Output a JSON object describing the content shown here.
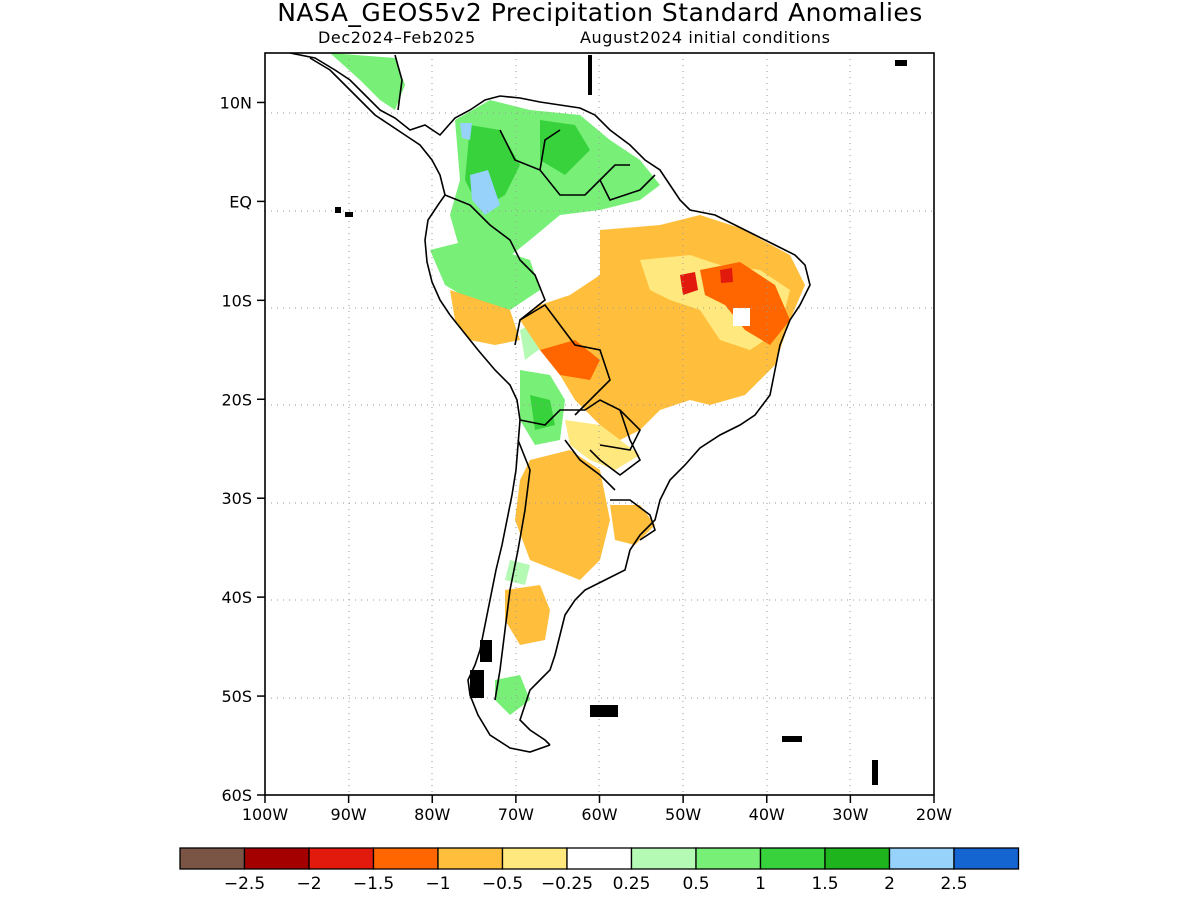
{
  "title": "NASA_GEOS5v2 Precipitation Standard Anomalies",
  "subtitle_left": "Dec2024–Feb2025",
  "subtitle_right": "August2024 initial conditions",
  "map": {
    "lon_range": [
      -100,
      -20
    ],
    "lat_range": [
      -60,
      15
    ],
    "lat_ticks": [
      {
        "value": 10,
        "label": "10N"
      },
      {
        "value": 0,
        "label": "EQ"
      },
      {
        "value": -10,
        "label": "10S"
      },
      {
        "value": -20,
        "label": "20S"
      },
      {
        "value": -30,
        "label": "30S"
      },
      {
        "value": -40,
        "label": "40S"
      },
      {
        "value": -50,
        "label": "50S"
      },
      {
        "value": -60,
        "label": "60S"
      }
    ],
    "lon_ticks": [
      {
        "value": -100,
        "label": "100W"
      },
      {
        "value": -90,
        "label": "90W"
      },
      {
        "value": -80,
        "label": "80W"
      },
      {
        "value": -70,
        "label": "70W"
      },
      {
        "value": -60,
        "label": "60W"
      },
      {
        "value": -50,
        "label": "50W"
      },
      {
        "value": -40,
        "label": "40W"
      },
      {
        "value": -30,
        "label": "30W"
      },
      {
        "value": -20,
        "label": "20W"
      }
    ],
    "grid": "dotted"
  },
  "colorbar": {
    "colors": [
      "#7a5445",
      "#a50000",
      "#e11a0d",
      "#ff6600",
      "#ffbf3c",
      "#ffe87d",
      "#ffffff",
      "#b4fab4",
      "#78f078",
      "#37d23c",
      "#1eb41e",
      "#96d2fa",
      "#1464d2"
    ],
    "labels": [
      "−2.5",
      "−2",
      "−1.5",
      "−1",
      "−0.5",
      "−0.25",
      "0.25",
      "0.5",
      "1",
      "1.5",
      "2",
      "2.5"
    ]
  }
}
